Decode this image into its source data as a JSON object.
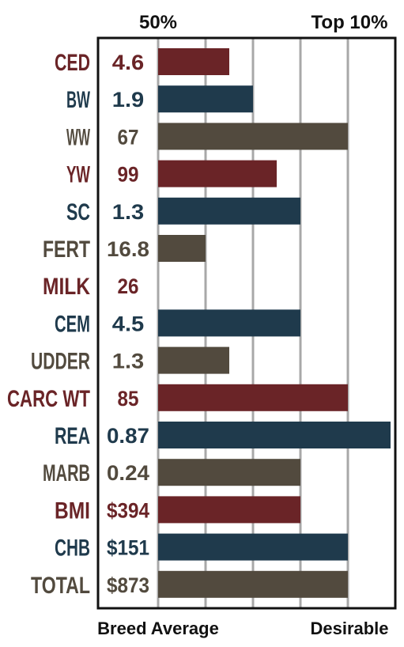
{
  "chart_data": {
    "type": "bar",
    "orientation": "horizontal",
    "top_labels": [
      "50%",
      "Top 10%"
    ],
    "bottom_labels": [
      "Breed Average",
      "Desirable"
    ],
    "categories": [
      "CED",
      "BW",
      "WW",
      "YW",
      "SC",
      "FERT",
      "MILK",
      "CEM",
      "UDDER",
      "CARC WT",
      "REA",
      "MARB",
      "BMI",
      "CHB",
      "TOTAL"
    ],
    "values": [
      "4.6",
      "1.9",
      "67",
      "99",
      "1.3",
      "16.8",
      "26",
      "4.5",
      "1.3",
      "85",
      "0.87",
      "0.24",
      "$394",
      "$151",
      "$873"
    ],
    "bar_levels": [
      1.5,
      2,
      4,
      2.5,
      3,
      1,
      0,
      3,
      1.5,
      4,
      4.9,
      3,
      3,
      4,
      4
    ],
    "bar_colors": [
      "#6a2427",
      "#1f3a4c",
      "#524a3e",
      "#6a2427",
      "#1f3a4c",
      "#524a3e",
      "#6a2427",
      "#1f3a4c",
      "#524a3e",
      "#6a2427",
      "#1f3a4c",
      "#524a3e",
      "#6a2427",
      "#1f3a4c",
      "#524a3e"
    ],
    "grid": true,
    "colors": {
      "red": "#6a2427",
      "blue": "#1f3a4c",
      "brown": "#524a3e",
      "grid": "#a8a8a8",
      "frame": "#111111"
    }
  }
}
